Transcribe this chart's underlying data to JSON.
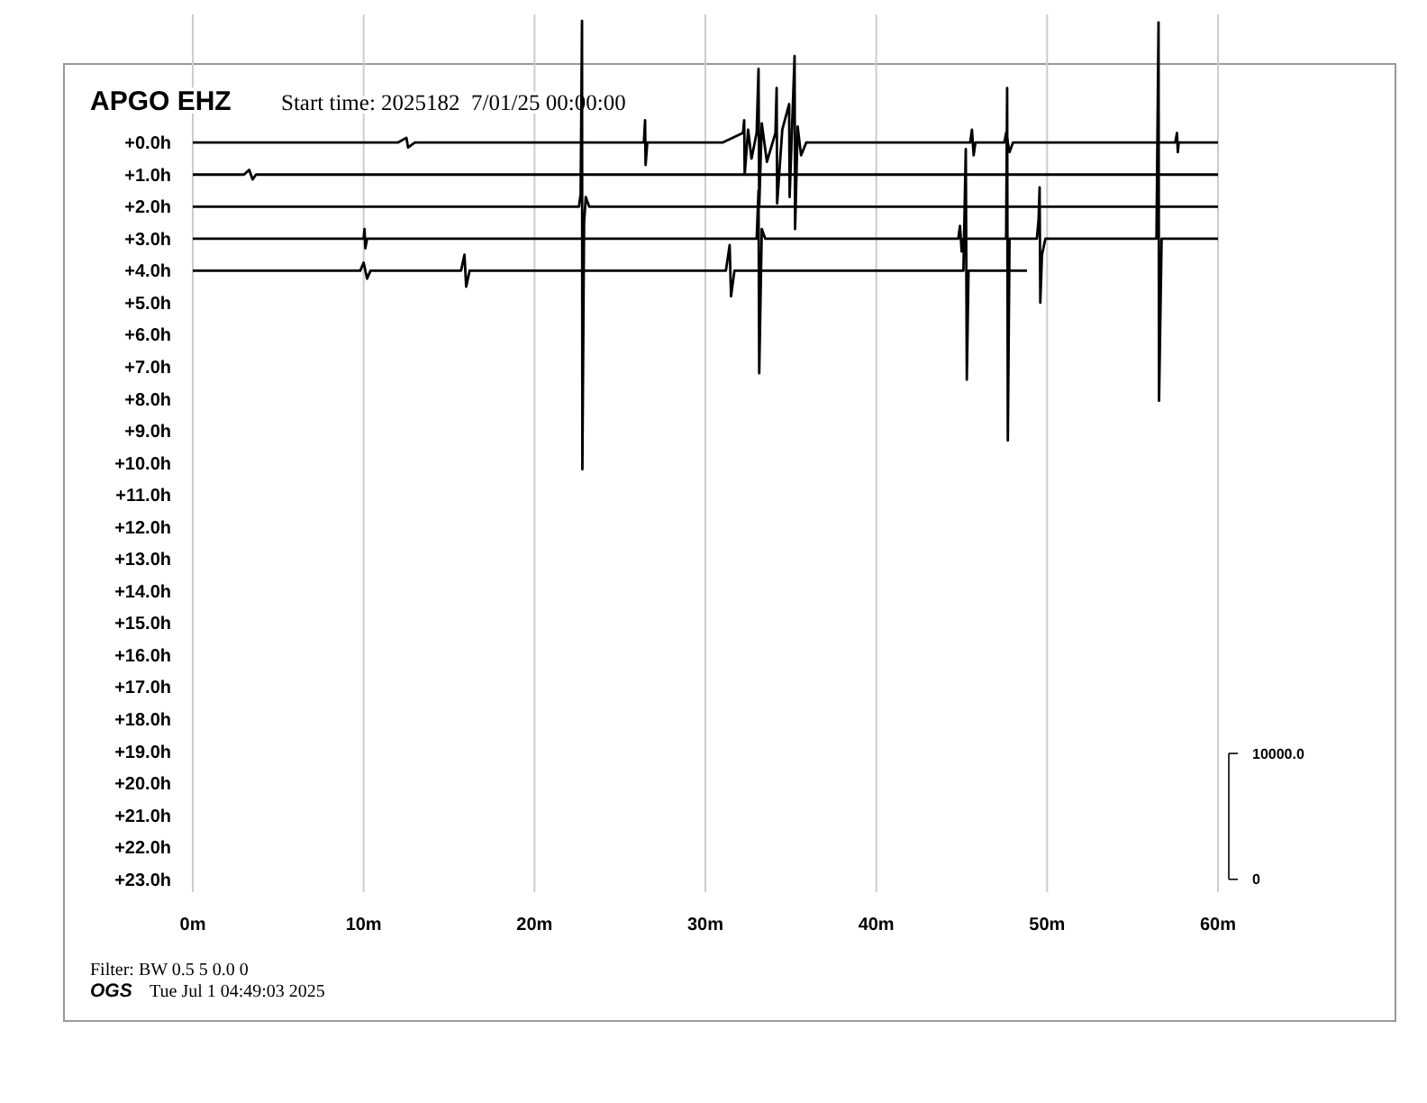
{
  "chart_data": {
    "type": "line",
    "title": "APGO EHZ",
    "subtitle": "Start time: 2025182  7/01/25 00:00:00",
    "annotations": [
      "Filter: BW 0.5 5 0.0 0",
      "OGS",
      "Tue Jul 1 04:49:03 2025"
    ],
    "xlim": [
      0,
      60
    ],
    "xticks": [
      {
        "value": 0,
        "label": "0m"
      },
      {
        "value": 10,
        "label": "10m"
      },
      {
        "value": 20,
        "label": "20m"
      },
      {
        "value": 30,
        "label": "30m"
      },
      {
        "value": 40,
        "label": "40m"
      },
      {
        "value": 50,
        "label": "50m"
      },
      {
        "value": 60,
        "label": "60m"
      }
    ],
    "ylim": [
      23.4,
      -4
    ],
    "yticks": [
      {
        "value": 0,
        "label": "+0.0h"
      },
      {
        "value": 1,
        "label": "+1.0h"
      },
      {
        "value": 2,
        "label": "+2.0h"
      },
      {
        "value": 3,
        "label": "+3.0h"
      },
      {
        "value": 4,
        "label": "+4.0h"
      },
      {
        "value": 5,
        "label": "+5.0h"
      },
      {
        "value": 6,
        "label": "+6.0h"
      },
      {
        "value": 7,
        "label": "+7.0h"
      },
      {
        "value": 8,
        "label": "+8.0h"
      },
      {
        "value": 9,
        "label": "+9.0h"
      },
      {
        "value": 10,
        "label": "+10.0h"
      },
      {
        "value": 11,
        "label": "+11.0h"
      },
      {
        "value": 12,
        "label": "+12.0h"
      },
      {
        "value": 13,
        "label": "+13.0h"
      },
      {
        "value": 14,
        "label": "+14.0h"
      },
      {
        "value": 15,
        "label": "+15.0h"
      },
      {
        "value": 16,
        "label": "+16.0h"
      },
      {
        "value": 17,
        "label": "+17.0h"
      },
      {
        "value": 18,
        "label": "+18.0h"
      },
      {
        "value": 19,
        "label": "+19.0h"
      },
      {
        "value": 20,
        "label": "+20.0h"
      },
      {
        "value": 21,
        "label": "+21.0h"
      },
      {
        "value": 22,
        "label": "+22.0h"
      },
      {
        "value": 23,
        "label": "+23.0h"
      }
    ],
    "y2lim": [
      -1018,
      68715
    ],
    "y2ticks": [
      0,
      {
        "value": 10000,
        "label": "10000.0"
      }
    ],
    "grid": "x",
    "marker": "none",
    "line_style": "solid",
    "series": [
      {
        "color": "#000000",
        "x": [
          0,
          12,
          12.5,
          12.6,
          13,
          26.4,
          26.47,
          26.5,
          26.6,
          31,
          32.2,
          32.27,
          32.3,
          32.5,
          32.7,
          33.0,
          33.11,
          33.15,
          33.3,
          33.6,
          34.1,
          34.17,
          34.2,
          34.5,
          34.9,
          34.93,
          35.1,
          35.22,
          35.25,
          35.4,
          35.6,
          35.9,
          45.5,
          45.6,
          45.7,
          45.8,
          47.5,
          47.6,
          47.8,
          48.0,
          57.5,
          57.6,
          57.65,
          57.7,
          60
        ],
        "values": [
          0,
          0,
          -0.15,
          0.15,
          0,
          0,
          -0.7,
          0.7,
          0,
          0,
          -0.3,
          -0.7,
          1.0,
          -0.4,
          0.5,
          -0.3,
          -2.3,
          2.0,
          -0.6,
          0.6,
          -0.3,
          -1.7,
          1.9,
          -0.4,
          -1.2,
          1.7,
          -0.9,
          -2.7,
          2.7,
          -0.5,
          0.4,
          0,
          0,
          -0.4,
          0.4,
          0,
          0,
          -0.3,
          0.3,
          0,
          0,
          -0.3,
          0.3,
          0,
          0
        ]
      },
      {
        "color": "#000000",
        "x": [
          0,
          3,
          3.3,
          3.5,
          3.7,
          60
        ],
        "values": [
          1,
          1,
          0.85,
          1.15,
          1,
          1
        ]
      },
      {
        "color": "#000000",
        "x": [
          0,
          22.6,
          22.7,
          22.78,
          22.8,
          22.9,
          23.0,
          23.2,
          60
        ],
        "values": [
          2,
          2,
          1.6,
          -3.8,
          10.2,
          2.5,
          1.7,
          2,
          2
        ]
      },
      {
        "color": "#000000",
        "x": [
          0,
          10,
          10.05,
          10.1,
          10.2,
          33.0,
          33.11,
          33.15,
          33.3,
          33.5,
          44.8,
          44.9,
          45.0,
          45.1,
          47.6,
          47.66,
          47.7,
          47.8,
          49.4,
          49.5,
          49.56,
          49.6,
          49.7,
          49.9,
          56.4,
          56.52,
          56.55,
          56.7,
          60
        ],
        "values": [
          3,
          3,
          2.7,
          3.3,
          3,
          3,
          1.5,
          7.2,
          2.7,
          3,
          3,
          2.6,
          3.4,
          3,
          3,
          -1.7,
          9.3,
          3,
          3,
          2.4,
          1.4,
          5.0,
          3.5,
          3,
          3,
          -3.75,
          8.06,
          3,
          3
        ]
      },
      {
        "color": "#000000",
        "x": [
          0,
          9.8,
          10,
          10.2,
          10.4,
          15.7,
          15.9,
          16,
          16.2,
          31.2,
          31.42,
          31.5,
          31.7,
          45.1,
          45.24,
          45.3,
          45.4,
          48.82
        ],
        "values": [
          4,
          4,
          3.75,
          4.25,
          4,
          4,
          3.5,
          4.5,
          4,
          4,
          3.2,
          4.8,
          4,
          4,
          0.2,
          7.4,
          4,
          4
        ]
      }
    ]
  }
}
